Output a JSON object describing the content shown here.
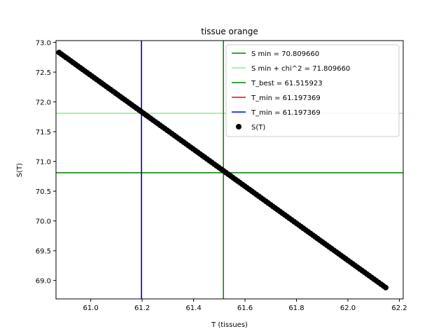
{
  "chart_data": {
    "type": "scatter",
    "title": "tissue orange",
    "xlabel": "T (tissues)",
    "ylabel": "S(T)",
    "xlim": [
      60.865,
      62.215
    ],
    "ylim": [
      68.69,
      73.03
    ],
    "xticks": [
      61.0,
      61.2,
      61.4,
      61.6,
      61.8,
      62.0,
      62.2
    ],
    "xtick_labels": [
      "61.0",
      "61.2",
      "61.4",
      "61.6",
      "61.8",
      "62.0",
      "62.2"
    ],
    "yticks": [
      69.0,
      69.5,
      70.0,
      70.5,
      71.0,
      71.5,
      72.0,
      72.5,
      73.0
    ],
    "ytick_labels": [
      "69.0",
      "69.5",
      "70.0",
      "70.5",
      "71.0",
      "71.5",
      "72.0",
      "72.5",
      "73.0"
    ],
    "grid": false,
    "legend_position": "upper-right",
    "scatter_series": {
      "name": "S(T)",
      "color": "#000000",
      "x_start": 60.877,
      "x_end": 62.147,
      "y_start": 72.83,
      "y_end": 68.88,
      "count": 140
    },
    "lines": [
      {
        "name": "S min = 70.809660",
        "orientation": "horizontal",
        "value": 70.80966,
        "color": "#008000"
      },
      {
        "name": "S min + chi^2 = 71.809660",
        "orientation": "horizontal",
        "value": 71.80966,
        "color": "#90ee90"
      },
      {
        "name": "T_best = 61.515923",
        "orientation": "vertical",
        "value": 61.515923,
        "color": "#008000"
      },
      {
        "name": "T_min = 61.197369",
        "orientation": "vertical",
        "value": 61.197369,
        "color": "#ff0000"
      },
      {
        "name": "T_min = 61.197369",
        "orientation": "vertical",
        "value": 61.197369,
        "color": "#0000ff"
      }
    ]
  }
}
